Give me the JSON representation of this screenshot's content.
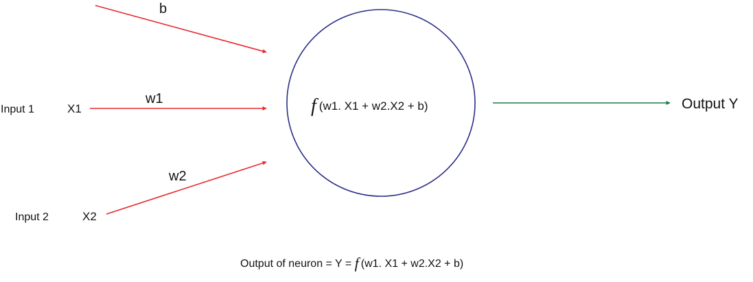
{
  "colors": {
    "input_arrow": "#e8262b",
    "output_arrow": "#1a7a3c",
    "neuron": "#2a2c86",
    "text": "#111111"
  },
  "inputs": [
    {
      "label": "Input 1",
      "variable": "X1",
      "weight": "w1"
    },
    {
      "label": "Input 2",
      "variable": "X2",
      "weight": "w2"
    }
  ],
  "bias": {
    "label": "b"
  },
  "neuron": {
    "function_symbol": "f",
    "expression": "(w1. X1 + w2.X2 + b)"
  },
  "output": {
    "label": "Output Y"
  },
  "caption": {
    "prefix": "Output of neuron = Y = ",
    "function_symbol": "f",
    "expression": "(w1. X1 + w2.X2 + b)"
  }
}
